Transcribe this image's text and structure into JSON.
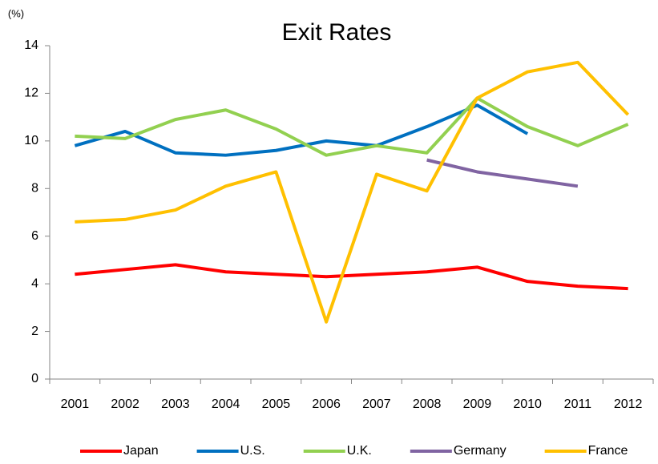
{
  "chart_data": {
    "type": "line",
    "title": "Exit Rates",
    "y_label": "(%)",
    "categories": [
      "2001",
      "2002",
      "2003",
      "2004",
      "2005",
      "2006",
      "2007",
      "2008",
      "2009",
      "2010",
      "2011",
      "2012"
    ],
    "series": [
      {
        "name": "Japan",
        "color": "#ff0000",
        "values": [
          4.4,
          4.6,
          4.8,
          4.5,
          4.4,
          4.3,
          4.4,
          4.5,
          4.7,
          4.1,
          3.9,
          3.8
        ]
      },
      {
        "name": "U.S.",
        "color": "#0070c0",
        "values": [
          9.8,
          10.4,
          9.5,
          9.4,
          9.6,
          10.0,
          9.8,
          10.6,
          11.5,
          10.3,
          null,
          null
        ]
      },
      {
        "name": "U.K.",
        "color": "#92d050",
        "values": [
          10.2,
          10.1,
          10.9,
          11.3,
          10.5,
          9.4,
          9.8,
          9.5,
          11.8,
          10.6,
          9.8,
          10.7
        ]
      },
      {
        "name": "Germany",
        "color": "#8064a2",
        "values": [
          null,
          null,
          null,
          null,
          null,
          null,
          null,
          9.2,
          8.7,
          8.4,
          8.1,
          null
        ]
      },
      {
        "name": "France",
        "color": "#ffc000",
        "values": [
          6.6,
          6.7,
          7.1,
          8.1,
          8.7,
          2.4,
          8.6,
          7.9,
          11.8,
          12.9,
          13.3,
          11.1
        ]
      }
    ],
    "ylim": [
      0,
      14
    ],
    "yticks": [
      0,
      2,
      4,
      6,
      8,
      10,
      12,
      14
    ],
    "grid": false,
    "legend": "bottom"
  }
}
